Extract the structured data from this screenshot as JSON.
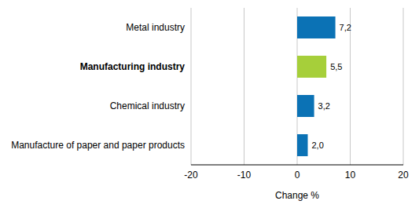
{
  "chart_data": {
    "type": "bar",
    "orientation": "horizontal",
    "categories": [
      "Metal industry",
      "Manufacturing industry",
      "Chemical industry",
      "Manufacture of paper and paper products"
    ],
    "values": [
      7.2,
      5.5,
      3.2,
      2.0
    ],
    "value_labels": [
      "7,2",
      "5,5",
      "3,2",
      "2,0"
    ],
    "colors": [
      "#0b72b5",
      "#a6cf3a",
      "#0b72b5",
      "#0b72b5"
    ],
    "xlim": [
      -20,
      20
    ],
    "xticks": [
      -20,
      -10,
      0,
      10,
      20
    ],
    "x_label": "Change %",
    "grid": true,
    "data_labels": true
  }
}
